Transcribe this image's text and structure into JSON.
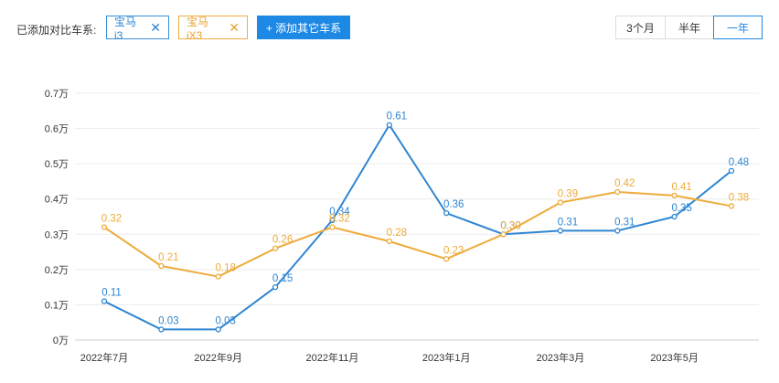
{
  "toolbar": {
    "compare_label": "已添加对比车系:",
    "tags": [
      {
        "label": "宝马i3",
        "color": "#2f86d1"
      },
      {
        "label": "宝马iX3",
        "color": "#e9a12d"
      }
    ],
    "add_button": "+ 添加其它车系",
    "ranges": [
      "3个月",
      "半年",
      "一年"
    ],
    "active_range": "一年"
  },
  "chart_data": {
    "type": "line",
    "x": [
      "2022年7月",
      "2022年8月",
      "2022年9月",
      "2022年10月",
      "2022年11月",
      "2022年12月",
      "2023年1月",
      "2023年2月",
      "2023年3月",
      "2023年4月",
      "2023年5月",
      "2023年6月"
    ],
    "x_tick_labels": [
      "2022年7月",
      "2022年9月",
      "2022年11月",
      "2023年1月",
      "2023年3月",
      "2023年5月"
    ],
    "y_ticks": [
      "0万",
      "0.1万",
      "0.2万",
      "0.3万",
      "0.4万",
      "0.5万",
      "0.6万",
      "0.7万"
    ],
    "ylim": [
      0,
      0.7
    ],
    "grid": "horizontal",
    "series": [
      {
        "name": "宝马i3",
        "color": "#2f86d1",
        "values": [
          0.11,
          0.03,
          0.03,
          0.15,
          0.34,
          0.61,
          0.36,
          0.3,
          0.31,
          0.31,
          0.35,
          0.48
        ]
      },
      {
        "name": "宝马iX3",
        "color": "#eeab3a",
        "values": [
          0.32,
          0.21,
          0.18,
          0.26,
          0.32,
          0.28,
          0.23,
          0.3,
          0.39,
          0.42,
          0.41,
          0.38
        ]
      }
    ]
  }
}
